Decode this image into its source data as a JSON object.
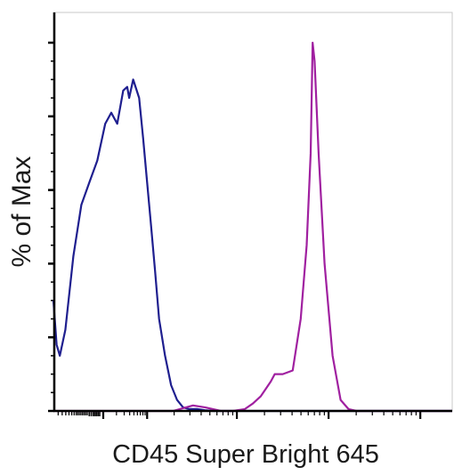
{
  "chart_data": {
    "type": "line",
    "xlabel": "CD45 Super Bright 645",
    "ylabel": "% of Max",
    "x_scale": "logicle",
    "xlim": [
      0,
      1
    ],
    "ylim": [
      0,
      100
    ],
    "grid": false,
    "legend": "none",
    "tick_labels": false,
    "series": [
      {
        "color": "#1f1f8f",
        "x": [
          0.0,
          0.008,
          0.016,
          0.03,
          0.05,
          0.07,
          0.09,
          0.11,
          0.13,
          0.145,
          0.16,
          0.175,
          0.185,
          0.19,
          0.2,
          0.215,
          0.225,
          0.235,
          0.245,
          0.255,
          0.265,
          0.28,
          0.295,
          0.31,
          0.325,
          0.34,
          0.36,
          0.38,
          0.4,
          0.43,
          1.0
        ],
        "y": [
          30,
          18,
          15,
          22,
          42,
          56,
          62,
          68,
          78,
          81,
          78,
          87,
          88,
          85,
          90,
          85,
          74,
          62,
          50,
          38,
          25,
          15,
          7,
          3,
          1,
          0.5,
          0.5,
          0.2,
          0,
          0,
          0
        ]
      },
      {
        "color": "#a020a0",
        "x": [
          0.0,
          0.3,
          0.35,
          0.38,
          0.42,
          0.45,
          0.48,
          0.5,
          0.52,
          0.545,
          0.555,
          0.575,
          0.6,
          0.62,
          0.635,
          0.645,
          0.65,
          0.655,
          0.665,
          0.68,
          0.7,
          0.72,
          0.74,
          0.76,
          0.8,
          1.0
        ],
        "y": [
          0,
          0,
          1.5,
          1,
          0,
          0,
          0.5,
          2,
          4,
          8,
          10,
          10,
          11,
          25,
          45,
          70,
          100,
          95,
          70,
          40,
          15,
          3,
          0.5,
          0,
          0,
          0
        ]
      }
    ]
  }
}
